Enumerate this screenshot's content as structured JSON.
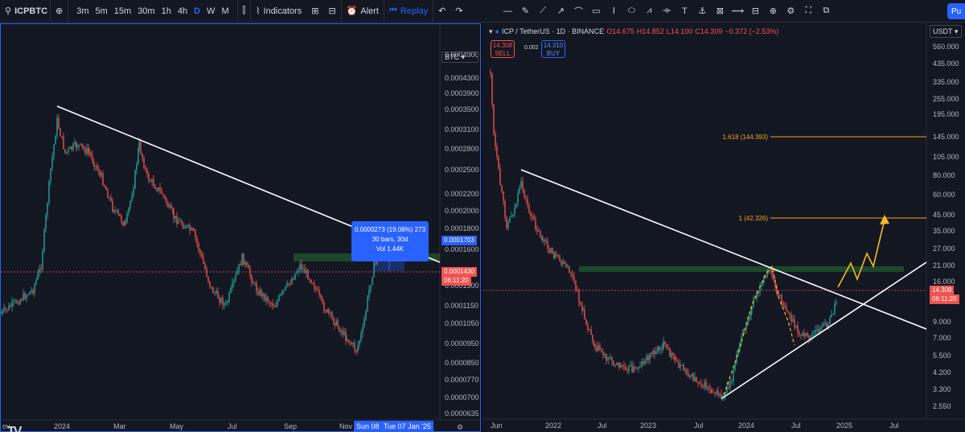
{
  "toolbar": {
    "symbol": "ICPBTC",
    "timeframes": [
      "3m",
      "5m",
      "15m",
      "30m",
      "1h",
      "4h",
      "D",
      "W",
      "M"
    ],
    "active_timeframe": "D",
    "indicators_label": "Indicators",
    "alert_label": "Alert",
    "replay_label": "Replay",
    "publish_label": "Pu",
    "drawing_tools": [
      "line-tool-icon",
      "pen-icon",
      "ray-icon",
      "arrow-icon",
      "brush-icon",
      "rectangle-icon",
      "text-cursor-icon",
      "ellipse-icon",
      "pattern-icon",
      "measure-icon",
      "text-icon",
      "anchor-icon",
      "projection-icon",
      "forecast-icon",
      "long-position-icon",
      "zoom-icon",
      "settings-icon",
      "fullscreen-icon",
      "snapshot-icon"
    ]
  },
  "left_chart": {
    "currency": "BTC",
    "price_labels": [
      "0.0004900",
      "0.0004300",
      "0.0003900",
      "0.0003500",
      "0.0003100",
      "0.0002800",
      "0.0002500",
      "0.0002200",
      "0.0002000",
      "0.0001800",
      "0.0001600",
      "0.0001300",
      "0.0001150",
      "0.0001050",
      "0.0000950",
      "0.0000850",
      "0.0000770",
      "0.0000700",
      "0.0000635"
    ],
    "x_labels": [
      "ov",
      "2024",
      "Mar",
      "May",
      "Jul",
      "Sep",
      "Nov"
    ],
    "measure": {
      "line1": "0.0000273 (19.08%) 273",
      "line2": "30 bars, 30d",
      "line3": "Vol 1.44K"
    },
    "tag_upper": "0.0001703",
    "tag_last": "0.0001430",
    "tag_countdown": "06:11:20",
    "date_start": "Sun 08 D",
    "date_end": "Tue 07 Jan '25",
    "logo": "TV",
    "colors": {
      "up": "#26a69a",
      "down": "#ef5350",
      "trendline": "#ffffff",
      "zone": "#1e4d2b",
      "accent": "#2962ff"
    }
  },
  "right_chart": {
    "title": "ICP / TetherUS · 1D · BINANCE",
    "ohlc": {
      "o": "O14.675",
      "h": "H14.852",
      "l": "L14.100",
      "c": "C14.309",
      "change": "−0.372 (−2.53%)"
    },
    "sell": {
      "price": "14.308",
      "label": "SELL"
    },
    "buy": {
      "price": "14.310",
      "label": "BUY"
    },
    "spread": "0.002",
    "currency": "USDT",
    "price_labels": [
      "560.000",
      "435.000",
      "335.000",
      "255.000",
      "195.000",
      "145.000",
      "105.000",
      "80.000",
      "60.000",
      "45.000",
      "35.000",
      "27.000",
      "21.000",
      "16.000",
      "12.000",
      "9.000",
      "7.000",
      "5.500",
      "4.200",
      "3.300",
      "2.550"
    ],
    "x_labels": [
      "Jun",
      "2022",
      "Jul",
      "2023",
      "Jul",
      "2024",
      "Jul",
      "2025",
      "Jul"
    ],
    "fib_1618": "1.618 (144.393)",
    "fib_1": "1 (42.326)",
    "tag_last": "14.309",
    "tag_countdown": "06:11:20",
    "colors": {
      "fib": "#f7a21b",
      "projection": "#f7b924",
      "trendline": "#ffffff",
      "zone": "#1e4d2b"
    }
  }
}
